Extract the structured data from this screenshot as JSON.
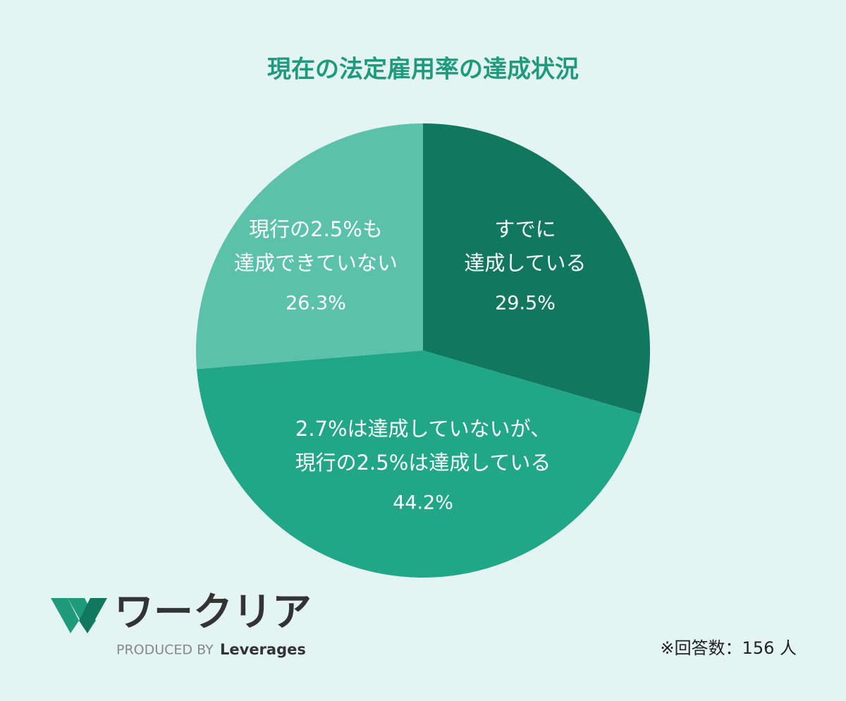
{
  "chart_data": {
    "type": "pie",
    "title": "現在の法定雇用率の達成状況",
    "categories": [
      [
        "すでに",
        "達成している"
      ],
      [
        "2.7%は達成していないが、",
        "現行の2.5%は達成している"
      ],
      [
        "現行の2.5%も",
        "達成できていない"
      ]
    ],
    "values": [
      29.5,
      44.2,
      26.3
    ],
    "value_labels": [
      "29.5%",
      "44.2%",
      "26.3%"
    ],
    "colors": [
      "#11775f",
      "#21a687",
      "#5bc1aa"
    ]
  },
  "logo": {
    "name": "ワークリア",
    "tagline": "PRODUCED BY",
    "brand": "Leverages"
  },
  "note": "※回答数：156 人"
}
